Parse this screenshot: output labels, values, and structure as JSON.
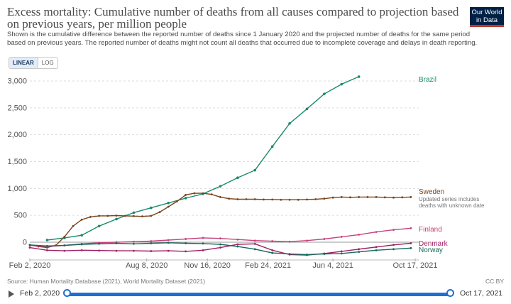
{
  "header": {
    "title": "Excess mortality: Cumulative number of deaths from all causes compared to projection based on previous years, per million people",
    "subtitle": "Shown is the cumulative difference between the reported number of deaths since 1 January 2020 and the projected number of deaths for the same period based on previous years. The reported number of deaths might not count all deaths that occurred due to incomplete coverage and delays in death reporting.",
    "logo_line1": "Our World",
    "logo_line2": "in Data"
  },
  "controls": {
    "linear_label": "LINEAR",
    "log_label": "LOG"
  },
  "footer": {
    "source": "Source: Human Mortality Database (2021), World Mortality Dataset (2021)",
    "license": "CC BY"
  },
  "timeline": {
    "start_label": "Feb 2, 2020",
    "end_label": "Oct 17, 2021"
  },
  "colors": {
    "Brazil": "#1a8a6b",
    "Sweden": "#7a4419",
    "Finland": "#c6437b",
    "Denmark": "#9e1f63",
    "Norway": "#16685c",
    "grid": "#dddddd",
    "axis": "#555555"
  },
  "chart_data": {
    "type": "line",
    "title": "Excess mortality: Cumulative number of deaths from all causes compared to projection based on previous years, per million people",
    "xlabel": "",
    "ylabel": "",
    "x_range_weeks": [
      0,
      89
    ],
    "ylim": [
      -250,
      3100
    ],
    "yticks": [
      0,
      500,
      1000,
      1500,
      2000,
      2500,
      3000
    ],
    "ytick_labels": [
      "0",
      "500",
      "1,000",
      "1,500",
      "2,000",
      "2,500",
      "3,000"
    ],
    "xticks": [
      {
        "label": "Feb 2, 2020",
        "week": 0
      },
      {
        "label": "Aug 8, 2020",
        "week": 27
      },
      {
        "label": "Nov 16, 2020",
        "week": 41
      },
      {
        "label": "Feb 24, 2021",
        "week": 55
      },
      {
        "label": "Jun 4, 2021",
        "week": 70
      },
      {
        "label": "Oct 17, 2021",
        "week": 89
      }
    ],
    "legend_note": "Updated series includes deaths with unknown date",
    "series": [
      {
        "name": "Brazil",
        "monthly": true,
        "points": [
          [
            4,
            40
          ],
          [
            8,
            80
          ],
          [
            12,
            130
          ],
          [
            16,
            300
          ],
          [
            20,
            430
          ],
          [
            24,
            550
          ],
          [
            28,
            640
          ],
          [
            32,
            730
          ],
          [
            36,
            820
          ],
          [
            40,
            900
          ],
          [
            44,
            1040
          ],
          [
            48,
            1200
          ],
          [
            52,
            1340
          ],
          [
            56,
            1780
          ],
          [
            60,
            2210
          ],
          [
            64,
            2480
          ],
          [
            68,
            2760
          ],
          [
            72,
            2940
          ],
          [
            76,
            3080
          ]
        ]
      },
      {
        "name": "Sweden",
        "points": [
          [
            0,
            -50
          ],
          [
            2,
            -80
          ],
          [
            4,
            -100
          ],
          [
            6,
            -60
          ],
          [
            8,
            100
          ],
          [
            10,
            300
          ],
          [
            12,
            420
          ],
          [
            14,
            470
          ],
          [
            16,
            490
          ],
          [
            18,
            490
          ],
          [
            20,
            495
          ],
          [
            22,
            490
          ],
          [
            24,
            485
          ],
          [
            26,
            480
          ],
          [
            28,
            490
          ],
          [
            30,
            560
          ],
          [
            32,
            660
          ],
          [
            34,
            760
          ],
          [
            36,
            880
          ],
          [
            38,
            910
          ],
          [
            40,
            910
          ],
          [
            42,
            890
          ],
          [
            44,
            840
          ],
          [
            46,
            810
          ],
          [
            48,
            800
          ],
          [
            50,
            800
          ],
          [
            52,
            800
          ],
          [
            54,
            795
          ],
          [
            56,
            795
          ],
          [
            58,
            790
          ],
          [
            60,
            790
          ],
          [
            62,
            790
          ],
          [
            64,
            795
          ],
          [
            66,
            800
          ],
          [
            68,
            810
          ],
          [
            70,
            830
          ],
          [
            72,
            840
          ],
          [
            74,
            835
          ],
          [
            76,
            840
          ],
          [
            78,
            840
          ],
          [
            80,
            840
          ],
          [
            82,
            835
          ],
          [
            84,
            830
          ],
          [
            86,
            835
          ],
          [
            88,
            840
          ]
        ]
      },
      {
        "name": "Finland",
        "points": [
          [
            0,
            -60
          ],
          [
            4,
            -80
          ],
          [
            8,
            -60
          ],
          [
            12,
            -30
          ],
          [
            16,
            -10
          ],
          [
            20,
            0
          ],
          [
            24,
            10
          ],
          [
            28,
            20
          ],
          [
            32,
            40
          ],
          [
            36,
            60
          ],
          [
            40,
            80
          ],
          [
            44,
            70
          ],
          [
            48,
            50
          ],
          [
            52,
            30
          ],
          [
            56,
            20
          ],
          [
            60,
            10
          ],
          [
            64,
            30
          ],
          [
            68,
            60
          ],
          [
            72,
            100
          ],
          [
            76,
            140
          ],
          [
            80,
            190
          ],
          [
            84,
            230
          ],
          [
            88,
            260
          ]
        ]
      },
      {
        "name": "Denmark",
        "points": [
          [
            0,
            -100
          ],
          [
            4,
            -150
          ],
          [
            8,
            -160
          ],
          [
            12,
            -150
          ],
          [
            16,
            -155
          ],
          [
            20,
            -160
          ],
          [
            24,
            -160
          ],
          [
            28,
            -165
          ],
          [
            32,
            -160
          ],
          [
            36,
            -170
          ],
          [
            40,
            -150
          ],
          [
            44,
            -100
          ],
          [
            48,
            -40
          ],
          [
            52,
            -30
          ],
          [
            56,
            -150
          ],
          [
            60,
            -230
          ],
          [
            64,
            -240
          ],
          [
            68,
            -210
          ],
          [
            72,
            -170
          ],
          [
            76,
            -130
          ],
          [
            80,
            -90
          ],
          [
            84,
            -50
          ],
          [
            88,
            -20
          ]
        ]
      },
      {
        "name": "Norway",
        "points": [
          [
            0,
            -50
          ],
          [
            4,
            -70
          ],
          [
            8,
            -60
          ],
          [
            12,
            -40
          ],
          [
            16,
            -30
          ],
          [
            20,
            -20
          ],
          [
            24,
            -30
          ],
          [
            28,
            -20
          ],
          [
            32,
            -10
          ],
          [
            36,
            -20
          ],
          [
            40,
            -25
          ],
          [
            44,
            -40
          ],
          [
            48,
            -80
          ],
          [
            52,
            -130
          ],
          [
            56,
            -200
          ],
          [
            60,
            -220
          ],
          [
            64,
            -230
          ],
          [
            68,
            -220
          ],
          [
            72,
            -210
          ],
          [
            76,
            -180
          ],
          [
            80,
            -150
          ],
          [
            84,
            -130
          ],
          [
            88,
            -110
          ]
        ]
      }
    ]
  }
}
